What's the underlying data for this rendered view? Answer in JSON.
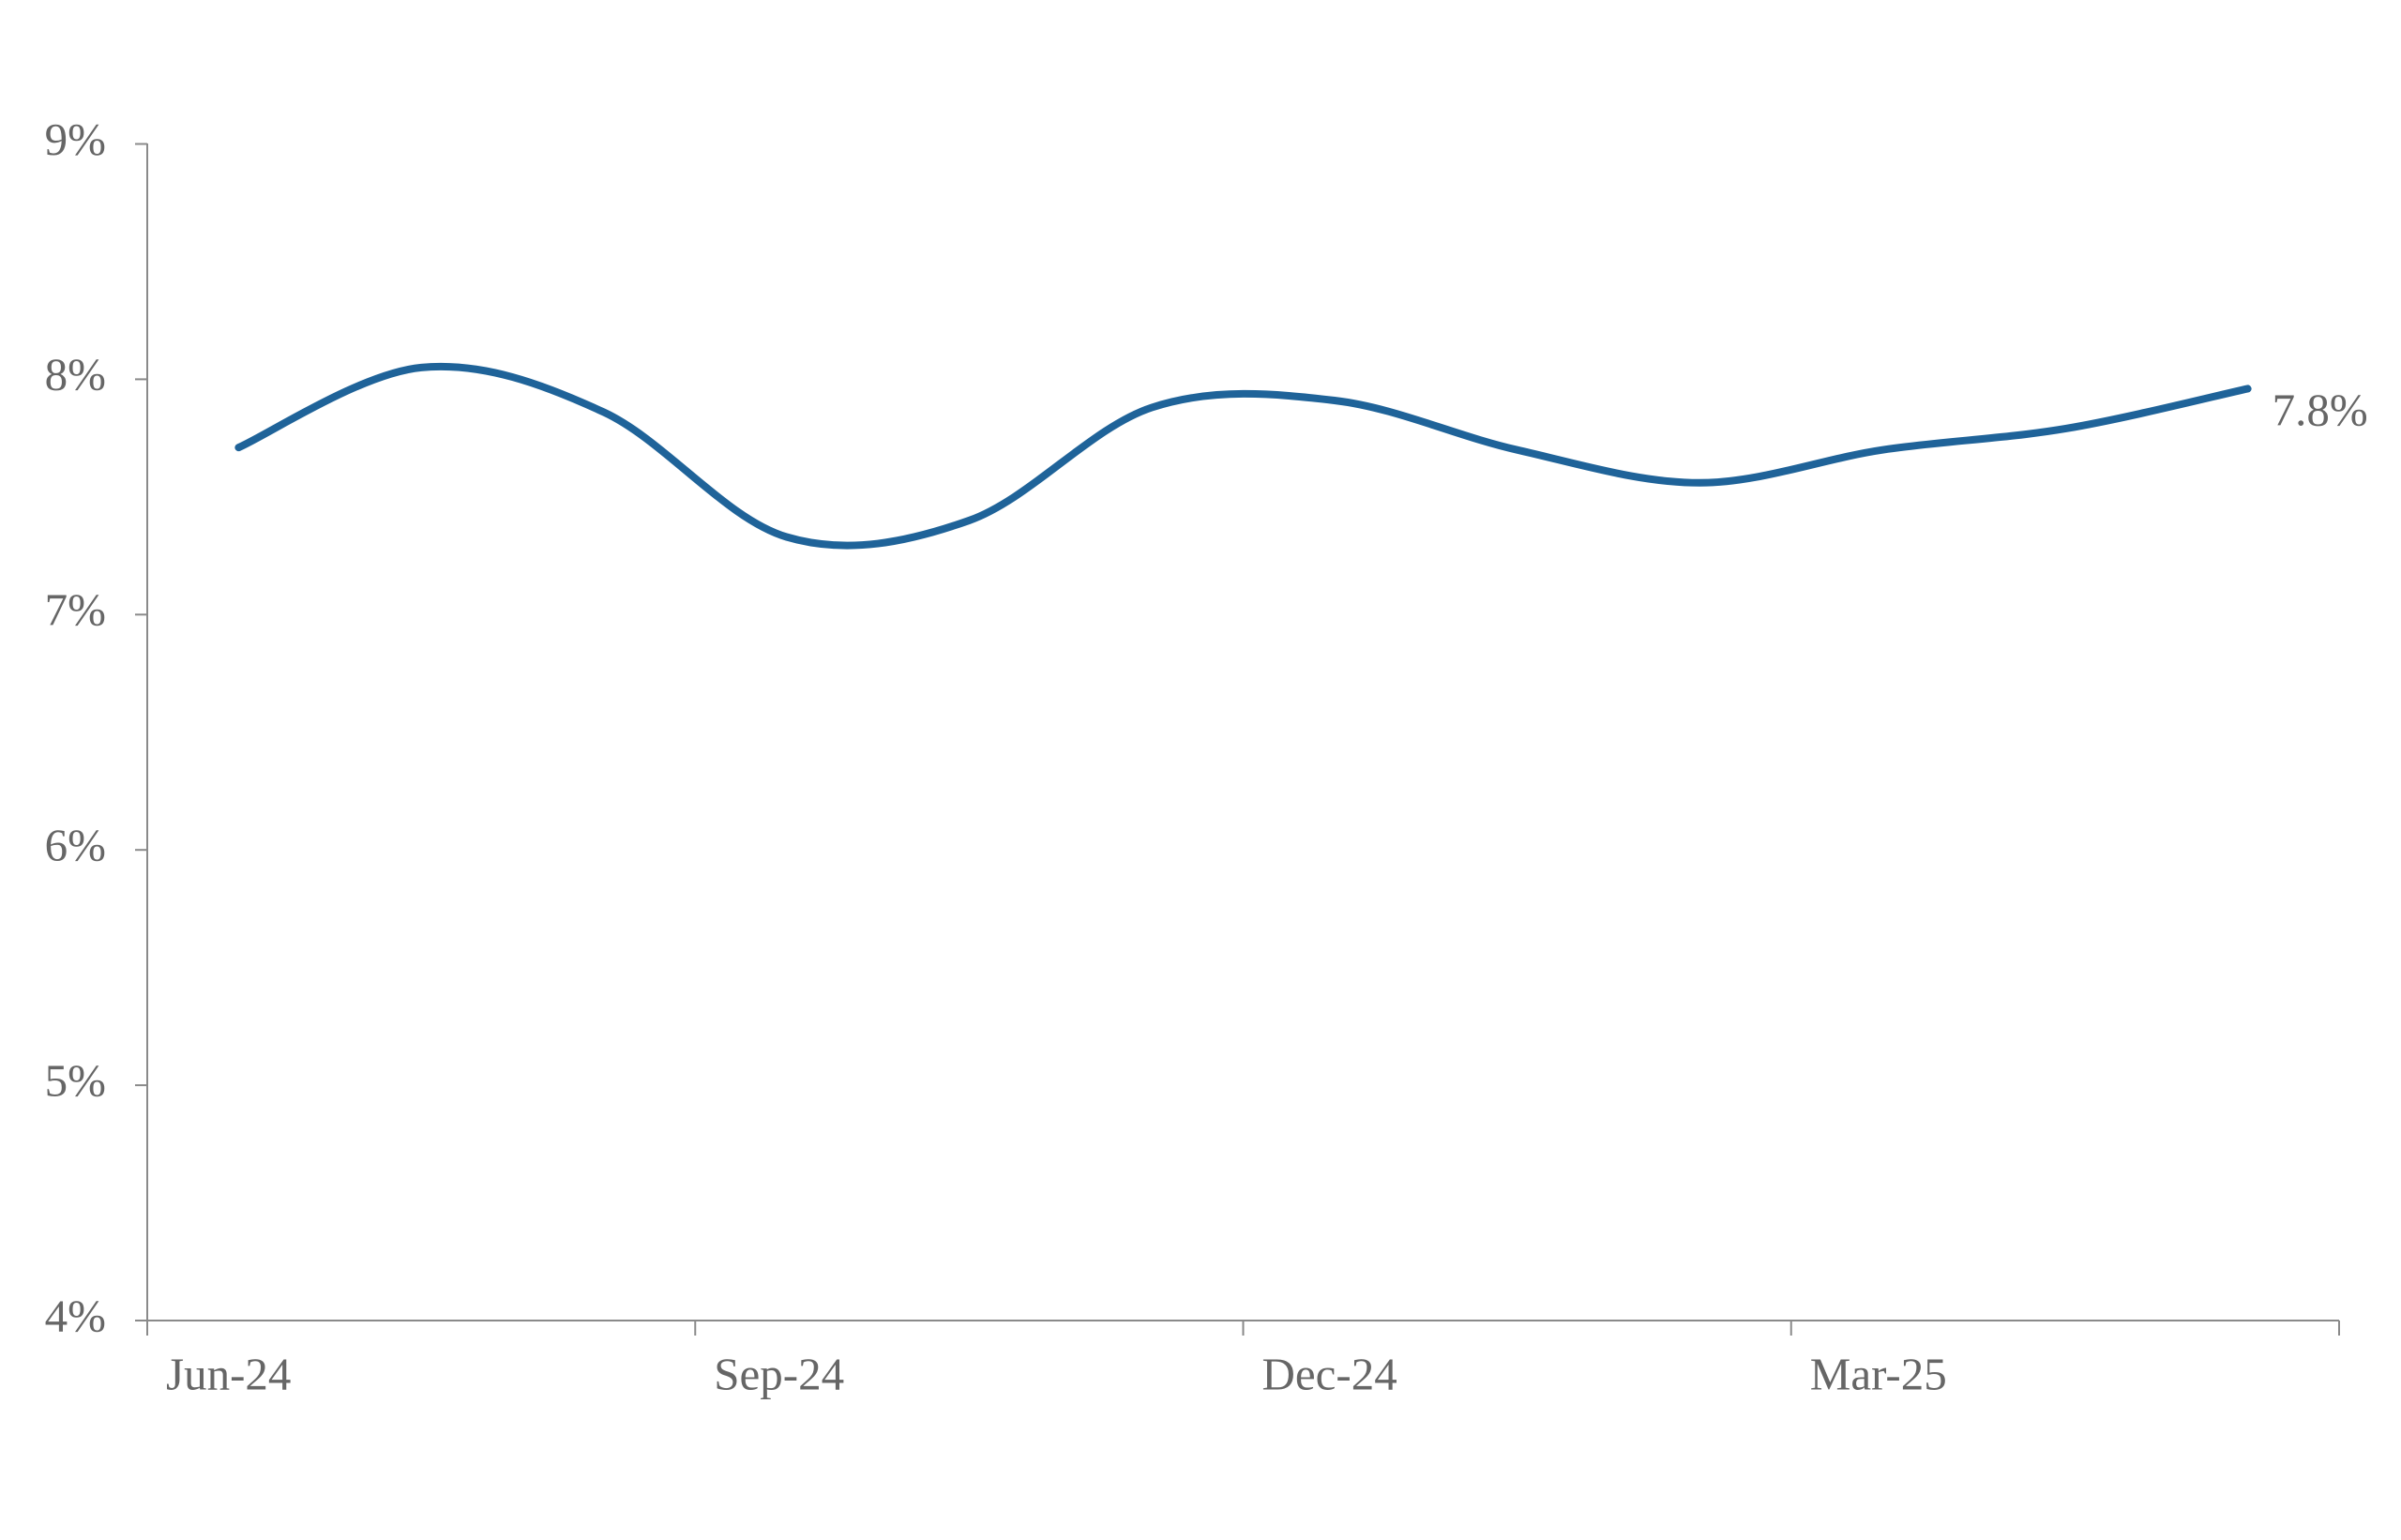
{
  "chart_data": {
    "type": "line",
    "categories": [
      "Jun-24",
      null,
      null,
      "Sep-24",
      null,
      null,
      "Dec-24",
      null,
      null,
      "Mar-25",
      null,
      null
    ],
    "series": [
      {
        "color": "#1f6399",
        "values": [
          7.71,
          8.05,
          7.86,
          7.33,
          7.4,
          7.88,
          7.91,
          7.7,
          7.56,
          7.7,
          7.79,
          7.96
        ]
      }
    ],
    "annotation": "7.8%",
    "ylim": [
      4,
      9
    ],
    "yticks": [
      {
        "value": 4,
        "label": "4%"
      },
      {
        "value": 5,
        "label": "5%"
      },
      {
        "value": 6,
        "label": "6%"
      },
      {
        "value": 7,
        "label": "7%"
      },
      {
        "value": 8,
        "label": "8%"
      },
      {
        "value": 9,
        "label": "9%"
      }
    ],
    "grid": false,
    "smooth": true
  }
}
